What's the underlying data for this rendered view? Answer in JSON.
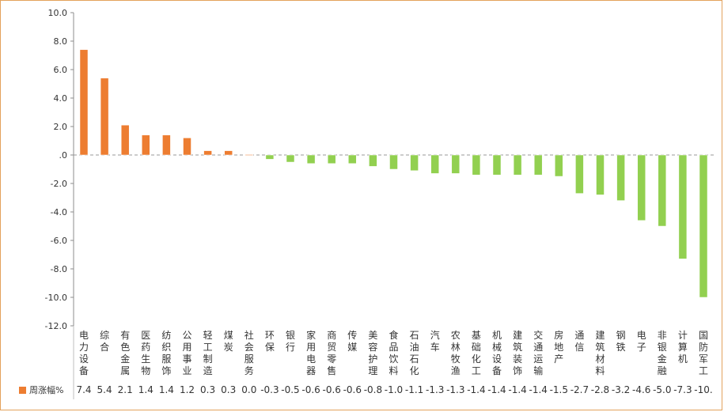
{
  "chart_data": {
    "type": "bar",
    "title": "",
    "xlabel": "",
    "ylabel": "",
    "ylim": [
      -12,
      10
    ],
    "yticks": [
      "10.0",
      "8.0",
      "6.0",
      "4.0",
      "2.0",
      ".0",
      "-2.0",
      "-4.0",
      "-6.0",
      "-8.0",
      "-10.0",
      "-12.0"
    ],
    "ytick_values": [
      10,
      8,
      6,
      4,
      2,
      0,
      -2,
      -4,
      -6,
      -8,
      -10,
      -12
    ],
    "categories": [
      "电力设备",
      "综合",
      "有色金属",
      "医药生物",
      "纺织服饰",
      "公用事业",
      "轻工制造",
      "煤炭",
      "社会服务",
      "环保",
      "银行",
      "家用电器",
      "商贸零售",
      "传媒",
      "美容护理",
      "食品饮料",
      "石油石化",
      "汽车",
      "农林牧渔",
      "基础化工",
      "机械设备",
      "建筑装饰",
      "交通运输",
      "房地产",
      "通信",
      "建筑材料",
      "钢铁",
      "电子",
      "非银金融",
      "计算机",
      "国防军工"
    ],
    "series": [
      {
        "name": "周涨幅%",
        "values": [
          7.4,
          5.4,
          2.1,
          1.4,
          1.4,
          1.2,
          0.3,
          0.3,
          0.0,
          -0.3,
          -0.5,
          -0.6,
          -0.6,
          -0.6,
          -0.8,
          -1.0,
          -1.1,
          -1.3,
          -1.3,
          -1.4,
          -1.4,
          -1.4,
          -1.4,
          -1.5,
          -2.7,
          -2.8,
          -3.2,
          -4.6,
          -5.0,
          -7.3,
          -10.0
        ],
        "labels": [
          "7.4",
          "5.4",
          "2.1",
          "1.4",
          "1.4",
          "1.2",
          "0.3",
          "0.3",
          "0.0",
          "-0.3",
          "-0.5",
          "-0.6",
          "-0.6",
          "-0.6",
          "-0.8",
          "-1.0",
          "-1.1",
          "-1.3",
          "-1.3",
          "-1.4",
          "-1.4",
          "-1.4",
          "-1.4",
          "-1.5",
          "-2.7",
          "-2.8",
          "-3.2",
          "-4.6",
          "-5.0",
          "-7.3",
          "-10."
        ]
      }
    ],
    "colors": {
      "positive": "#ED7D31",
      "negative": "#92D050"
    },
    "grid": false,
    "legend": "bottom-left"
  }
}
